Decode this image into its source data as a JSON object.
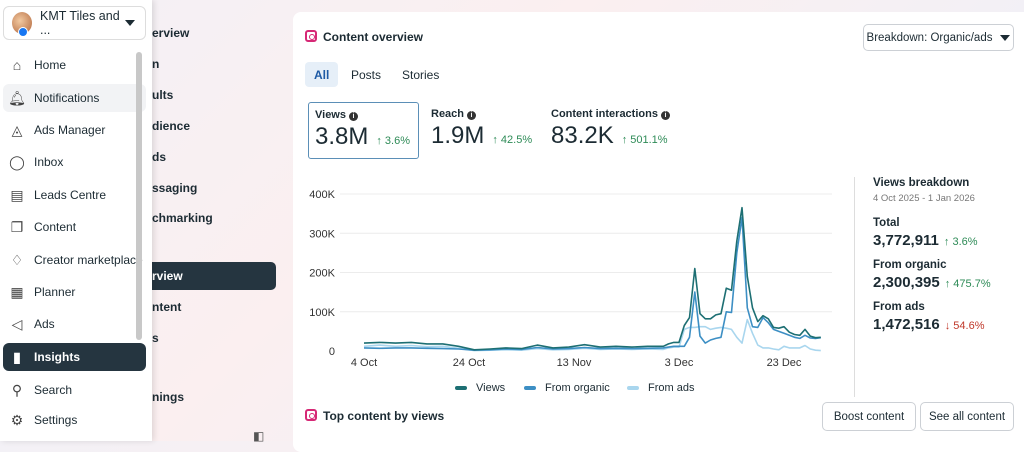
{
  "account": {
    "name": "KMT Tiles and ..."
  },
  "sidebar": {
    "items": [
      {
        "label": "Home",
        "icon": "home-icon",
        "glyph": "⌂"
      },
      {
        "label": "Notifications",
        "icon": "bell-icon",
        "glyph": "🔔︎"
      },
      {
        "label": "Ads Manager",
        "icon": "ads-manager-icon",
        "glyph": "◬"
      },
      {
        "label": "Inbox",
        "icon": "chat-icon",
        "glyph": "◯"
      },
      {
        "label": "Leads Centre",
        "icon": "contact-card-icon",
        "glyph": "▤"
      },
      {
        "label": "Content",
        "icon": "content-icon",
        "glyph": "❐"
      },
      {
        "label": "Creator marketplace",
        "icon": "handshake-icon",
        "glyph": "♢"
      },
      {
        "label": "Planner",
        "icon": "calendar-icon",
        "glyph": "▦"
      },
      {
        "label": "Ads",
        "icon": "megaphone-icon",
        "glyph": "◁"
      },
      {
        "label": "Insights",
        "icon": "bar-chart-icon",
        "glyph": "▮"
      },
      {
        "label": "Search",
        "icon": "search-icon",
        "glyph": "⚲"
      },
      {
        "label": "Settings",
        "icon": "gear-icon",
        "glyph": "⚙"
      }
    ]
  },
  "subnav": {
    "items": [
      "erview",
      "n",
      "ults",
      "dience",
      "ds",
      "ssaging",
      "chmarking",
      "rview",
      "ntent",
      "s",
      "nings"
    ],
    "active": "rview"
  },
  "content_overview": {
    "title": "Content overview",
    "breakdown_label": "Breakdown: Organic/ads",
    "tabs": [
      "All",
      "Posts",
      "Stories"
    ],
    "metrics": [
      {
        "label": "Views",
        "value": "3.8M",
        "change": "↑ 3.6%"
      },
      {
        "label": "Reach",
        "value": "1.9M",
        "change": "↑ 42.5%"
      },
      {
        "label": "Content interactions",
        "value": "83.2K",
        "change": "↑ 501.1%"
      }
    ],
    "views_breakdown": {
      "title": "Views breakdown",
      "range": "4 Oct 2025 - 1 Jan 2026",
      "rows": [
        {
          "label": "Total",
          "value": "3,772,911",
          "change": "↑ 3.6%",
          "direction": "up"
        },
        {
          "label": "From organic",
          "value": "2,300,395",
          "change": "↑ 475.7%",
          "direction": "up"
        },
        {
          "label": "From ads",
          "value": "1,472,516",
          "change": "↓ 54.6%",
          "direction": "down"
        }
      ]
    }
  },
  "top_content": {
    "title": "Top content by views",
    "boost": "Boost content",
    "see_all": "See all content"
  },
  "chart_data": {
    "type": "line",
    "yticks": [
      "0",
      "100K",
      "200K",
      "300K",
      "400K"
    ],
    "ylim": [
      0,
      400000
    ],
    "xticks": [
      "4 Oct",
      "24 Oct",
      "13 Nov",
      "3 Dec",
      "23 Dec"
    ],
    "x_tick_dates": [
      "2025-10-04",
      "2025-10-24",
      "2025-11-13",
      "2025-12-03",
      "2025-12-23"
    ],
    "grid": true,
    "legend_placement": "bottom",
    "x": [
      "2025-10-04",
      "2025-10-07",
      "2025-10-10",
      "2025-10-13",
      "2025-10-16",
      "2025-10-19",
      "2025-10-22",
      "2025-10-25",
      "2025-10-28",
      "2025-10-31",
      "2025-11-03",
      "2025-11-06",
      "2025-11-09",
      "2025-11-12",
      "2025-11-15",
      "2025-11-18",
      "2025-11-21",
      "2025-11-24",
      "2025-11-27",
      "2025-11-30",
      "2025-12-01",
      "2025-12-02",
      "2025-12-03",
      "2025-12-04",
      "2025-12-05",
      "2025-12-06",
      "2025-12-07",
      "2025-12-08",
      "2025-12-09",
      "2025-12-10",
      "2025-12-11",
      "2025-12-12",
      "2025-12-13",
      "2025-12-14",
      "2025-12-15",
      "2025-12-16",
      "2025-12-17",
      "2025-12-18",
      "2025-12-19",
      "2025-12-20",
      "2025-12-21",
      "2025-12-22",
      "2025-12-23",
      "2025-12-24",
      "2025-12-25",
      "2025-12-26",
      "2025-12-27",
      "2025-12-28",
      "2025-12-29",
      "2025-12-30"
    ],
    "series": [
      {
        "name": "Views",
        "color": "#1d6f73",
        "values": [
          20000,
          22000,
          20000,
          22000,
          18000,
          18000,
          12000,
          3000,
          5000,
          8000,
          6000,
          15000,
          8000,
          10000,
          16000,
          10000,
          12000,
          10000,
          12000,
          12000,
          18000,
          22000,
          22000,
          65000,
          85000,
          210000,
          95000,
          82000,
          82000,
          92000,
          95000,
          160000,
          155000,
          280000,
          365000,
          190000,
          110000,
          75000,
          90000,
          82000,
          60000,
          58000,
          62000,
          48000,
          42000,
          40000,
          55000,
          38000,
          34000,
          35000
        ]
      },
      {
        "name": "From organic",
        "color": "#3d8fc4",
        "values": [
          8000,
          7000,
          8000,
          8000,
          7000,
          6000,
          5000,
          2000,
          3000,
          5000,
          4000,
          9000,
          5000,
          6000,
          9000,
          6000,
          7000,
          6000,
          7000,
          8000,
          10000,
          12000,
          12000,
          12000,
          35000,
          150000,
          38000,
          20000,
          28000,
          32000,
          35000,
          100000,
          98000,
          250000,
          340000,
          110000,
          62000,
          60000,
          85000,
          72000,
          55000,
          50000,
          45000,
          40000,
          35000,
          32000,
          40000,
          33000,
          32000,
          34000
        ]
      },
      {
        "name": "From ads",
        "color": "#a9d6ee",
        "values": [
          12000,
          15000,
          12000,
          14000,
          11000,
          12000,
          7000,
          1000,
          2000,
          3000,
          2000,
          6000,
          3000,
          4000,
          7000,
          4000,
          5000,
          4000,
          5000,
          4000,
          8000,
          10000,
          10000,
          55000,
          60000,
          60000,
          62000,
          62000,
          55000,
          58000,
          60000,
          58000,
          55000,
          35000,
          20000,
          80000,
          45000,
          15000,
          8000,
          8000,
          5000,
          3000,
          12000,
          8000,
          8000,
          8000,
          14000,
          5000,
          2000,
          1000
        ]
      }
    ]
  }
}
